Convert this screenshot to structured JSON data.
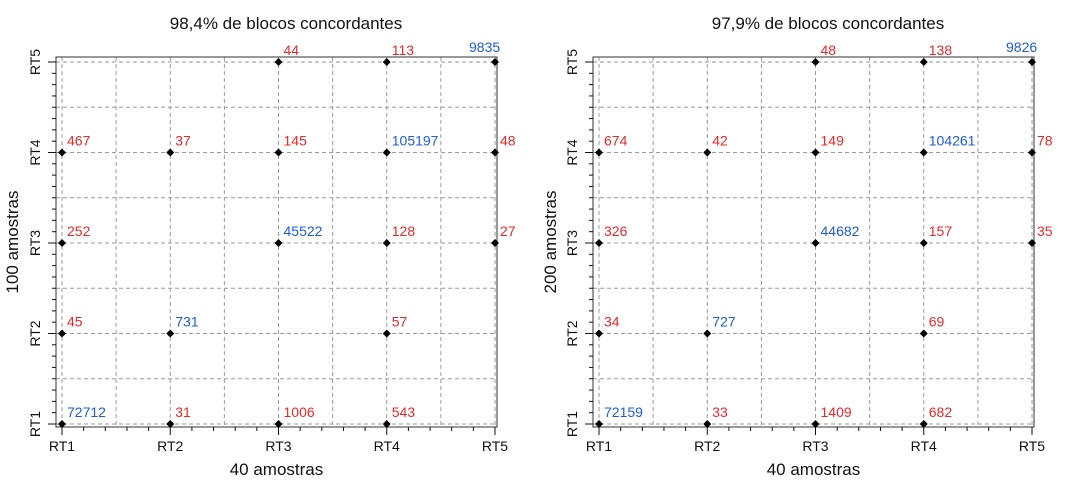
{
  "chart_data": [
    {
      "type": "scatter",
      "title": "98,4% de blocos concordantes",
      "xlabel": "40 amostras",
      "ylabel": "100 amostras",
      "x_categories": [
        "RT1",
        "RT2",
        "RT3",
        "RT4",
        "RT5"
      ],
      "y_categories": [
        "RT1",
        "RT2",
        "RT3",
        "RT4",
        "RT5"
      ],
      "grid": true,
      "points": [
        {
          "x": "RT1",
          "y": "RT1",
          "value": "72712",
          "color": "#1f5bd6"
        },
        {
          "x": "RT2",
          "y": "RT1",
          "value": "31",
          "color": "#e8282b"
        },
        {
          "x": "RT3",
          "y": "RT1",
          "value": "1006",
          "color": "#e8282b"
        },
        {
          "x": "RT4",
          "y": "RT1",
          "value": "543",
          "color": "#e8282b"
        },
        {
          "x": "RT1",
          "y": "RT2",
          "value": "45",
          "color": "#e8282b"
        },
        {
          "x": "RT2",
          "y": "RT2",
          "value": "731",
          "color": "#1f5bd6"
        },
        {
          "x": "RT4",
          "y": "RT2",
          "value": "57",
          "color": "#e8282b"
        },
        {
          "x": "RT1",
          "y": "RT3",
          "value": "252",
          "color": "#e8282b"
        },
        {
          "x": "RT3",
          "y": "RT3",
          "value": "45522",
          "color": "#1f5bd6"
        },
        {
          "x": "RT4",
          "y": "RT3",
          "value": "128",
          "color": "#e8282b"
        },
        {
          "x": "RT5",
          "y": "RT3",
          "value": "27",
          "color": "#e8282b"
        },
        {
          "x": "RT1",
          "y": "RT4",
          "value": "467",
          "color": "#e8282b"
        },
        {
          "x": "RT2",
          "y": "RT4",
          "value": "37",
          "color": "#e8282b"
        },
        {
          "x": "RT3",
          "y": "RT4",
          "value": "145",
          "color": "#e8282b"
        },
        {
          "x": "RT4",
          "y": "RT4",
          "value": "105197",
          "color": "#1f5bd6"
        },
        {
          "x": "RT5",
          "y": "RT4",
          "value": "48",
          "color": "#e8282b"
        },
        {
          "x": "RT3",
          "y": "RT5",
          "value": "44",
          "color": "#e8282b"
        },
        {
          "x": "RT4",
          "y": "RT5",
          "value": "113",
          "color": "#e8282b"
        },
        {
          "x": "RT5",
          "y": "RT5",
          "value": "9835",
          "color": "#1f5bd6"
        }
      ]
    },
    {
      "type": "scatter",
      "title": "97,9% de blocos concordantes",
      "xlabel": "40 amostras",
      "ylabel": "200 amostras",
      "x_categories": [
        "RT1",
        "RT2",
        "RT3",
        "RT4",
        "RT5"
      ],
      "y_categories": [
        "RT1",
        "RT2",
        "RT3",
        "RT4",
        "RT5"
      ],
      "grid": true,
      "points": [
        {
          "x": "RT1",
          "y": "RT1",
          "value": "72159",
          "color": "#1f5bd6"
        },
        {
          "x": "RT2",
          "y": "RT1",
          "value": "33",
          "color": "#e8282b"
        },
        {
          "x": "RT3",
          "y": "RT1",
          "value": "1409",
          "color": "#e8282b"
        },
        {
          "x": "RT4",
          "y": "RT1",
          "value": "682",
          "color": "#e8282b"
        },
        {
          "x": "RT1",
          "y": "RT2",
          "value": "34",
          "color": "#e8282b"
        },
        {
          "x": "RT2",
          "y": "RT2",
          "value": "727",
          "color": "#1f5bd6"
        },
        {
          "x": "RT4",
          "y": "RT2",
          "value": "69",
          "color": "#e8282b"
        },
        {
          "x": "RT1",
          "y": "RT3",
          "value": "326",
          "color": "#e8282b"
        },
        {
          "x": "RT3",
          "y": "RT3",
          "value": "44682",
          "color": "#1f5bd6"
        },
        {
          "x": "RT4",
          "y": "RT3",
          "value": "157",
          "color": "#e8282b"
        },
        {
          "x": "RT5",
          "y": "RT3",
          "value": "35",
          "color": "#e8282b"
        },
        {
          "x": "RT1",
          "y": "RT4",
          "value": "674",
          "color": "#e8282b"
        },
        {
          "x": "RT2",
          "y": "RT4",
          "value": "42",
          "color": "#e8282b"
        },
        {
          "x": "RT3",
          "y": "RT4",
          "value": "149",
          "color": "#e8282b"
        },
        {
          "x": "RT4",
          "y": "RT4",
          "value": "104261",
          "color": "#1f5bd6"
        },
        {
          "x": "RT5",
          "y": "RT4",
          "value": "78",
          "color": "#e8282b"
        },
        {
          "x": "RT3",
          "y": "RT5",
          "value": "48",
          "color": "#e8282b"
        },
        {
          "x": "RT4",
          "y": "RT5",
          "value": "138",
          "color": "#e8282b"
        },
        {
          "x": "RT5",
          "y": "RT5",
          "value": "9826",
          "color": "#1f5bd6"
        }
      ]
    }
  ]
}
